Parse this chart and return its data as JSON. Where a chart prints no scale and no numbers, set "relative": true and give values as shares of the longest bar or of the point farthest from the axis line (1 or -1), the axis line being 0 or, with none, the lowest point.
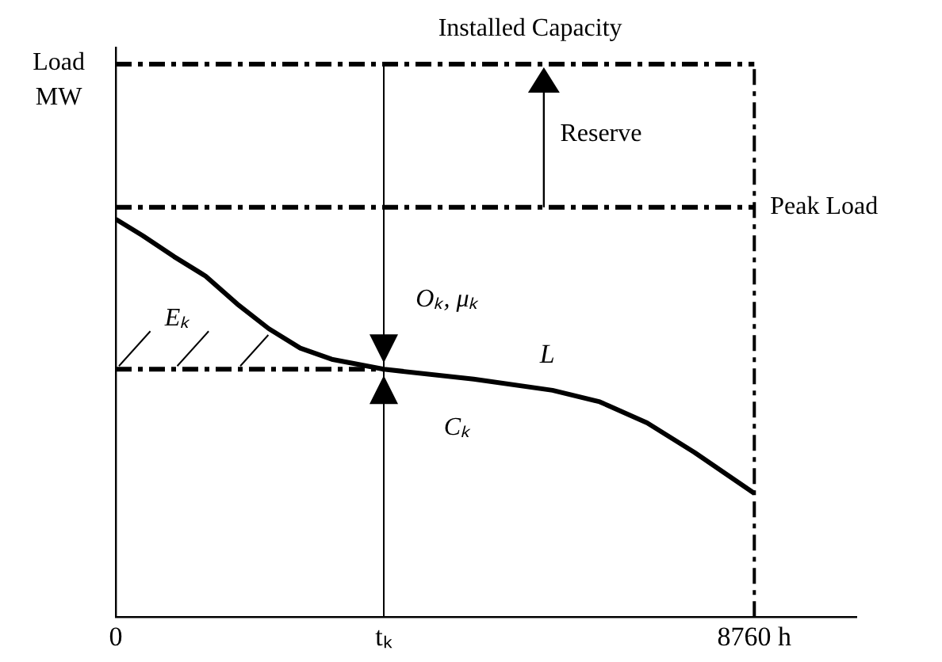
{
  "chart_data": {
    "type": "line",
    "relative": true,
    "ylabel": "Load MW",
    "x": [
      0,
      368,
      800,
      1233,
      1665,
      2098,
      2531,
      2963,
      3677,
      4910,
      5991,
      6640,
      7289,
      7938,
      8760
    ],
    "series": [
      {
        "name": "L",
        "color": "#000000",
        "values": [
          1,
          0.959,
          0.906,
          0.857,
          0.787,
          0.725,
          0.676,
          0.648,
          0.623,
          0.598,
          0.57,
          0.541,
          0.488,
          0.414,
          0.311
        ]
      },
      {
        "type": "line",
        "color": "#000000",
        "line_style": "dashed",
        "x": [
          0,
          3677
        ],
        "values": [
          0.623,
          0.623
        ]
      }
    ],
    "xlim": [
      0,
      10160
    ],
    "xticks": [
      0,
      {
        "value": 3677,
        "label": "tₖ"
      },
      {
        "value": 8760,
        "label": "8760 h"
      }
    ],
    "ref_lines": [
      {
        "axis": "y",
        "value": 1.39,
        "label": "Installed Capacity",
        "line_style": "dashed",
        "color": "#000000"
      },
      {
        "axis": "y",
        "value": 1.03,
        "label": "Peak Load",
        "line_style": "dashed",
        "color": "#000000"
      },
      {
        "axis": "x",
        "value": 3677,
        "color": "#000000"
      },
      {
        "axis": "x",
        "value": 8760,
        "line_style": "dashed",
        "color": "#000000"
      }
    ],
    "annotations": [
      "Reserve",
      "Oₖ, μₖ",
      "Eₖ",
      "Cₖ"
    ],
    "grid": false,
    "legend": false,
    "marker": "none",
    "line_style": "solid"
  }
}
